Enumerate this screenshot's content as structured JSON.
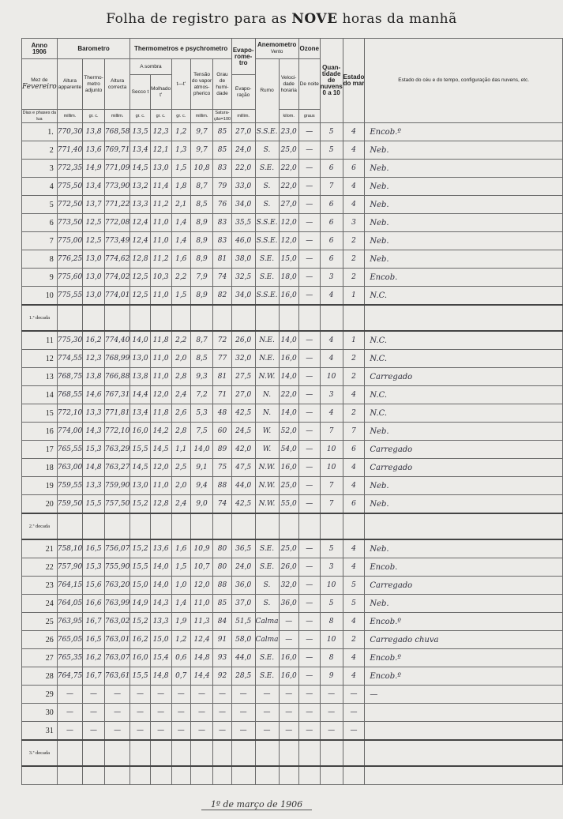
{
  "title_pre": "Folha de registro para as ",
  "title_bold": "NOVE",
  "title_post": " horas da manhã",
  "header": {
    "year_label": "Anno",
    "year": "1906",
    "month_label": "Mez de",
    "month": "Fevereiro",
    "days_label": "Dias e phases da lua",
    "barometro": "Barometro",
    "altura_apparente": "Altura apparente",
    "thermometro_adjunto": "Thermo-metro adjunto",
    "altura_correcta": "Altura correcta",
    "thermometros": "Thermometros e psychrometro",
    "a_sombra": "A sombra",
    "secco": "Secco t",
    "molhado": "Molhado t'",
    "diff": "t—t'",
    "tensao": "Tensão do vapor atmos-pherico",
    "grau": "Grau de humi-dade",
    "evaporometro": "Evapo-rome-tro",
    "evaporacao": "Evapo-ração",
    "anemometro": "Anemometro",
    "vento": "Vento",
    "rumo": "Rumo",
    "velocidade": "Veloci-dade horaria",
    "ozone": "Ozone",
    "de_noite": "De noite",
    "nebulosidade": "Quan-tidade de nuvens 0 a 10",
    "estado_mar": "Estado do mar",
    "estado_ceu": "Estado do céu e do tempo, configuração das nuvens, etc.",
    "units": [
      "millim.",
      "gr. c.",
      "millim.",
      "gr. c.",
      "gr. c.",
      "gr. c.",
      "millim.",
      "Satura-ção=100",
      "millim.",
      "",
      "kilom.",
      "graus",
      "",
      "",
      ""
    ]
  },
  "decade_labels": [
    "1.ª decada",
    "2.ª decada",
    "3.ª decada"
  ],
  "rows": [
    [
      "1.",
      "770,30",
      "13,8",
      "768,58",
      "13,5",
      "12,3",
      "1,2",
      "9,7",
      "85",
      "27,0",
      "S.S.E.",
      "23,0",
      "—",
      "5",
      "4",
      "Encob.º"
    ],
    [
      "2",
      "771,40",
      "13,6",
      "769,71",
      "13,4",
      "12,1",
      "1,3",
      "9,7",
      "85",
      "24,0",
      "S.",
      "25,0",
      "—",
      "5",
      "4",
      "Neb."
    ],
    [
      "3",
      "772,35",
      "14,9",
      "771,09",
      "14,5",
      "13,0",
      "1,5",
      "10,8",
      "83",
      "22,0",
      "S.E.",
      "22,0",
      "—",
      "6",
      "6",
      "Neb."
    ],
    [
      "4",
      "775,50",
      "13,4",
      "773,90",
      "13,2",
      "11,4",
      "1,8",
      "8,7",
      "79",
      "33,0",
      "S.",
      "22,0",
      "—",
      "7",
      "4",
      "Neb."
    ],
    [
      "5",
      "772,50",
      "13,7",
      "771,22",
      "13,3",
      "11,2",
      "2,1",
      "8,5",
      "76",
      "34,0",
      "S.",
      "27,0",
      "—",
      "6",
      "4",
      "Neb."
    ],
    [
      "6",
      "773,50",
      "12,5",
      "772,08",
      "12,4",
      "11,0",
      "1,4",
      "8,9",
      "83",
      "35,5",
      "S.S.E.",
      "12,0",
      "—",
      "6",
      "3",
      "Neb."
    ],
    [
      "7",
      "775,00",
      "12,5",
      "773,49",
      "12,4",
      "11,0",
      "1,4",
      "8,9",
      "83",
      "46,0",
      "S.S.E.",
      "12,0",
      "—",
      "6",
      "2",
      "Neb."
    ],
    [
      "8",
      "776,25",
      "13,0",
      "774,62",
      "12,8",
      "11,2",
      "1,6",
      "8,9",
      "81",
      "38,0",
      "S.E.",
      "15,0",
      "—",
      "6",
      "2",
      "Neb."
    ],
    [
      "9",
      "775,60",
      "13,0",
      "774,02",
      "12,5",
      "10,3",
      "2,2",
      "7,9",
      "74",
      "32,5",
      "S.E.",
      "18,0",
      "—",
      "3",
      "2",
      "Encob."
    ],
    [
      "10",
      "775,55",
      "13,0",
      "774,01",
      "12,5",
      "11,0",
      "1,5",
      "8,9",
      "82",
      "34,0",
      "S.S.E.",
      "16,0",
      "—",
      "4",
      "1",
      "N.C."
    ],
    [
      "11",
      "775,30",
      "16,2",
      "774,40",
      "14,0",
      "11,8",
      "2,2",
      "8,7",
      "72",
      "26,0",
      "N.E.",
      "14,0",
      "—",
      "4",
      "1",
      "N.C."
    ],
    [
      "12",
      "774,55",
      "12,3",
      "768,99",
      "13,0",
      "11,0",
      "2,0",
      "8,5",
      "77",
      "32,0",
      "N.E.",
      "16,0",
      "—",
      "4",
      "2",
      "N.C."
    ],
    [
      "13",
      "768,75",
      "13,8",
      "766,88",
      "13,8",
      "11,0",
      "2,8",
      "9,3",
      "81",
      "27,5",
      "N.W.",
      "14,0",
      "—",
      "10",
      "2",
      "Carregado"
    ],
    [
      "14",
      "768,55",
      "14,6",
      "767,31",
      "14,4",
      "12,0",
      "2,4",
      "7,2",
      "71",
      "27,0",
      "N.",
      "22,0",
      "—",
      "3",
      "4",
      "N.C."
    ],
    [
      "15",
      "772,10",
      "13,3",
      "771,81",
      "13,4",
      "11,8",
      "2,6",
      "5,3",
      "48",
      "42,5",
      "N.",
      "14,0",
      "—",
      "4",
      "2",
      "N.C."
    ],
    [
      "16",
      "774,00",
      "14,3",
      "772,10",
      "16,0",
      "14,2",
      "2,8",
      "7,5",
      "60",
      "24,5",
      "W.",
      "52,0",
      "—",
      "7",
      "7",
      "Neb."
    ],
    [
      "17",
      "765,55",
      "15,3",
      "763,29",
      "15,5",
      "14,5",
      "1,1",
      "14,0",
      "89",
      "42,0",
      "W.",
      "54,0",
      "—",
      "10",
      "6",
      "Carregado"
    ],
    [
      "18",
      "763,00",
      "14,8",
      "763,27",
      "14,5",
      "12,0",
      "2,5",
      "9,1",
      "75",
      "47,5",
      "N.W.",
      "16,0",
      "—",
      "10",
      "4",
      "Carregado"
    ],
    [
      "19",
      "759,55",
      "13,3",
      "759,90",
      "13,0",
      "11,0",
      "2,0",
      "9,4",
      "88",
      "44,0",
      "N.W.",
      "25,0",
      "—",
      "7",
      "4",
      "Neb."
    ],
    [
      "20",
      "759,50",
      "15,5",
      "757,50",
      "15,2",
      "12,8",
      "2,4",
      "9,0",
      "74",
      "42,5",
      "N.W.",
      "55,0",
      "—",
      "7",
      "6",
      "Neb."
    ],
    [
      "21",
      "758,10",
      "16,5",
      "756,07",
      "15,2",
      "13,6",
      "1,6",
      "10,9",
      "80",
      "36,5",
      "S.E.",
      "25,0",
      "—",
      "5",
      "4",
      "Neb."
    ],
    [
      "22",
      "757,90",
      "15,3",
      "755,90",
      "15,5",
      "14,0",
      "1,5",
      "10,7",
      "80",
      "24,0",
      "S.E.",
      "26,0",
      "—",
      "3",
      "4",
      "Encob."
    ],
    [
      "23",
      "764,15",
      "15,6",
      "763,20",
      "15,0",
      "14,0",
      "1,0",
      "12,0",
      "88",
      "36,0",
      "S.",
      "32,0",
      "—",
      "10",
      "5",
      "Carregado"
    ],
    [
      "24",
      "764,05",
      "16,6",
      "763,99",
      "14,9",
      "14,3",
      "1,4",
      "11,0",
      "85",
      "37,0",
      "S.",
      "36,0",
      "—",
      "5",
      "5",
      "Neb."
    ],
    [
      "25",
      "763,95",
      "16,7",
      "763,02",
      "15,2",
      "13,3",
      "1,9",
      "11,3",
      "84",
      "51,5",
      "Calma",
      "—",
      "—",
      "8",
      "4",
      "Encob.º"
    ],
    [
      "26",
      "765,05",
      "16,5",
      "763,01",
      "16,2",
      "15,0",
      "1,2",
      "12,4",
      "91",
      "58,0",
      "Calma",
      "—",
      "—",
      "10",
      "2",
      "Carregado chuva"
    ],
    [
      "27",
      "765,35",
      "16,2",
      "763,07",
      "16,0",
      "15,4",
      "0,6",
      "14,8",
      "93",
      "44,0",
      "S.E.",
      "16,0",
      "—",
      "8",
      "4",
      "Encob.º"
    ],
    [
      "28",
      "764,75",
      "16,7",
      "763,61",
      "15,5",
      "14,8",
      "0,7",
      "14,4",
      "92",
      "28,5",
      "S.E.",
      "16,0",
      "—",
      "9",
      "4",
      "Encob.º"
    ],
    [
      "29",
      "—",
      "—",
      "—",
      "—",
      "—",
      "—",
      "—",
      "—",
      "—",
      "—",
      "—",
      "—",
      "—",
      "—",
      "—"
    ],
    [
      "30",
      "—",
      "—",
      "—",
      "—",
      "—",
      "—",
      "—",
      "—",
      "—",
      "—",
      "—",
      "—",
      "—",
      "—",
      ""
    ],
    [
      "31",
      "—",
      "—",
      "—",
      "—",
      "—",
      "—",
      "—",
      "—",
      "—",
      "—",
      "—",
      "—",
      "—",
      "—",
      ""
    ]
  ],
  "signature": "1º de março de 1906"
}
